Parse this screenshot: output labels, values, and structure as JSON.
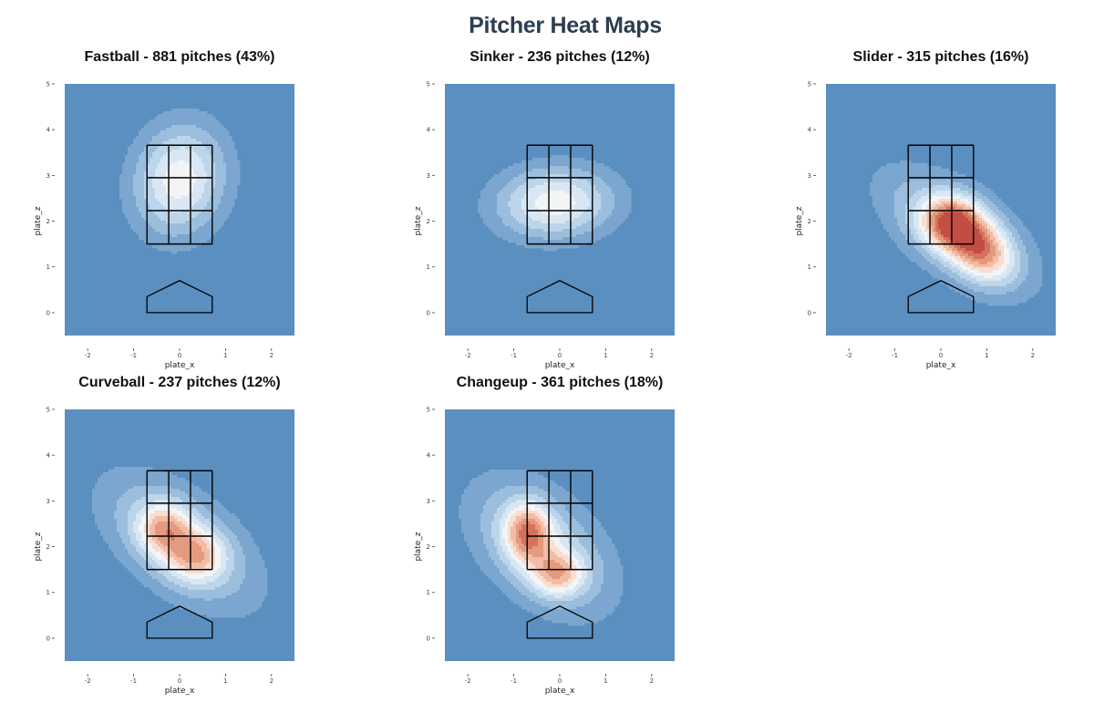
{
  "title": "Pitcher Heat Maps",
  "colors": {
    "background": "#5a8fc0",
    "scale": [
      "#5a8fc0",
      "#7ba6cf",
      "#9cbedd",
      "#bcd5ea",
      "#d8e7f3",
      "#f2f4f6",
      "#f9ddd0",
      "#f2bca5",
      "#e49a7f",
      "#d4735c",
      "#c24d43"
    ],
    "zone": "#000000"
  },
  "chart_data": [
    {
      "type": "heatmap",
      "title": "Fastball - 881 pitches (43%)",
      "xlabel": "plate_x",
      "ylabel": "plate_z",
      "xlim": [
        -2.5,
        2.5
      ],
      "ylim": [
        -0.5,
        5
      ],
      "xticks": [
        "-2",
        "-1",
        "0",
        "1",
        "2"
      ],
      "yticks": [
        "0",
        "1",
        "2",
        "3",
        "4",
        "5"
      ],
      "density": [
        {
          "x": 0.0,
          "y": 2.9,
          "sx": 0.7,
          "sy": 0.85,
          "rho": 0.1,
          "w": 5.6
        }
      ]
    },
    {
      "type": "heatmap",
      "title": "Sinker - 236 pitches (12%)",
      "xlabel": "plate_x",
      "ylabel": "plate_z",
      "xlim": [
        -2.5,
        2.5
      ],
      "ylim": [
        -0.5,
        5
      ],
      "xticks": [
        "-2",
        "-1",
        "0",
        "1",
        "2"
      ],
      "yticks": [
        "0",
        "1",
        "2",
        "3",
        "4",
        "5"
      ],
      "density": [
        {
          "x": -0.1,
          "y": 2.4,
          "sx": 0.9,
          "sy": 0.55,
          "rho": 0.05,
          "w": 5.6
        }
      ]
    },
    {
      "type": "heatmap",
      "title": "Slider - 315 pitches (16%)",
      "xlabel": "plate_x",
      "ylabel": "plate_z",
      "xlim": [
        -2.5,
        2.5
      ],
      "ylim": [
        -0.5,
        5
      ],
      "xticks": [
        "-2",
        "-1",
        "0",
        "1",
        "2"
      ],
      "yticks": [
        "0",
        "1",
        "2",
        "3",
        "4",
        "5"
      ],
      "density": [
        {
          "x": 0.2,
          "y": 2.0,
          "sx": 0.45,
          "sy": 0.4,
          "rho": 0.0,
          "w": 6.2
        },
        {
          "x": 0.85,
          "y": 1.4,
          "sx": 0.5,
          "sy": 0.5,
          "rho": -0.3,
          "w": 6.2
        },
        {
          "x": 0.3,
          "y": 1.8,
          "sx": 1.1,
          "sy": 0.9,
          "rho": -0.6,
          "w": 4.0
        }
      ]
    },
    {
      "type": "heatmap",
      "title": "Curveball - 237 pitches (12%)",
      "xlabel": "plate_x",
      "ylabel": "plate_z",
      "xlim": [
        -2.5,
        2.5
      ],
      "ylim": [
        -0.5,
        5
      ],
      "xticks": [
        "-2",
        "-1",
        "0",
        "1",
        "2"
      ],
      "yticks": [
        "0",
        "1",
        "2",
        "3",
        "4",
        "5"
      ],
      "density": [
        {
          "x": -0.35,
          "y": 2.4,
          "sx": 0.4,
          "sy": 0.4,
          "rho": 0.0,
          "w": 4.6
        },
        {
          "x": 0.35,
          "y": 1.8,
          "sx": 0.45,
          "sy": 0.4,
          "rho": 0.0,
          "w": 4.6
        },
        {
          "x": 0.0,
          "y": 2.1,
          "sx": 1.15,
          "sy": 1.0,
          "rho": -0.55,
          "w": 4.0
        }
      ]
    },
    {
      "type": "heatmap",
      "title": "Changeup - 361 pitches (18%)",
      "xlabel": "plate_x",
      "ylabel": "plate_z",
      "xlim": [
        -2.5,
        2.5
      ],
      "ylim": [
        -0.5,
        5
      ],
      "xticks": [
        "-2",
        "-1",
        "0",
        "1",
        "2"
      ],
      "yticks": [
        "0",
        "1",
        "2",
        "3",
        "4",
        "5"
      ],
      "density": [
        {
          "x": -0.7,
          "y": 2.3,
          "sx": 0.35,
          "sy": 0.45,
          "rho": 0.0,
          "w": 6.0
        },
        {
          "x": -0.05,
          "y": 1.4,
          "sx": 0.4,
          "sy": 0.35,
          "rho": 0.0,
          "w": 4.8
        },
        {
          "x": -0.4,
          "y": 2.0,
          "sx": 1.05,
          "sy": 1.0,
          "rho": -0.45,
          "w": 4.2
        }
      ]
    }
  ]
}
